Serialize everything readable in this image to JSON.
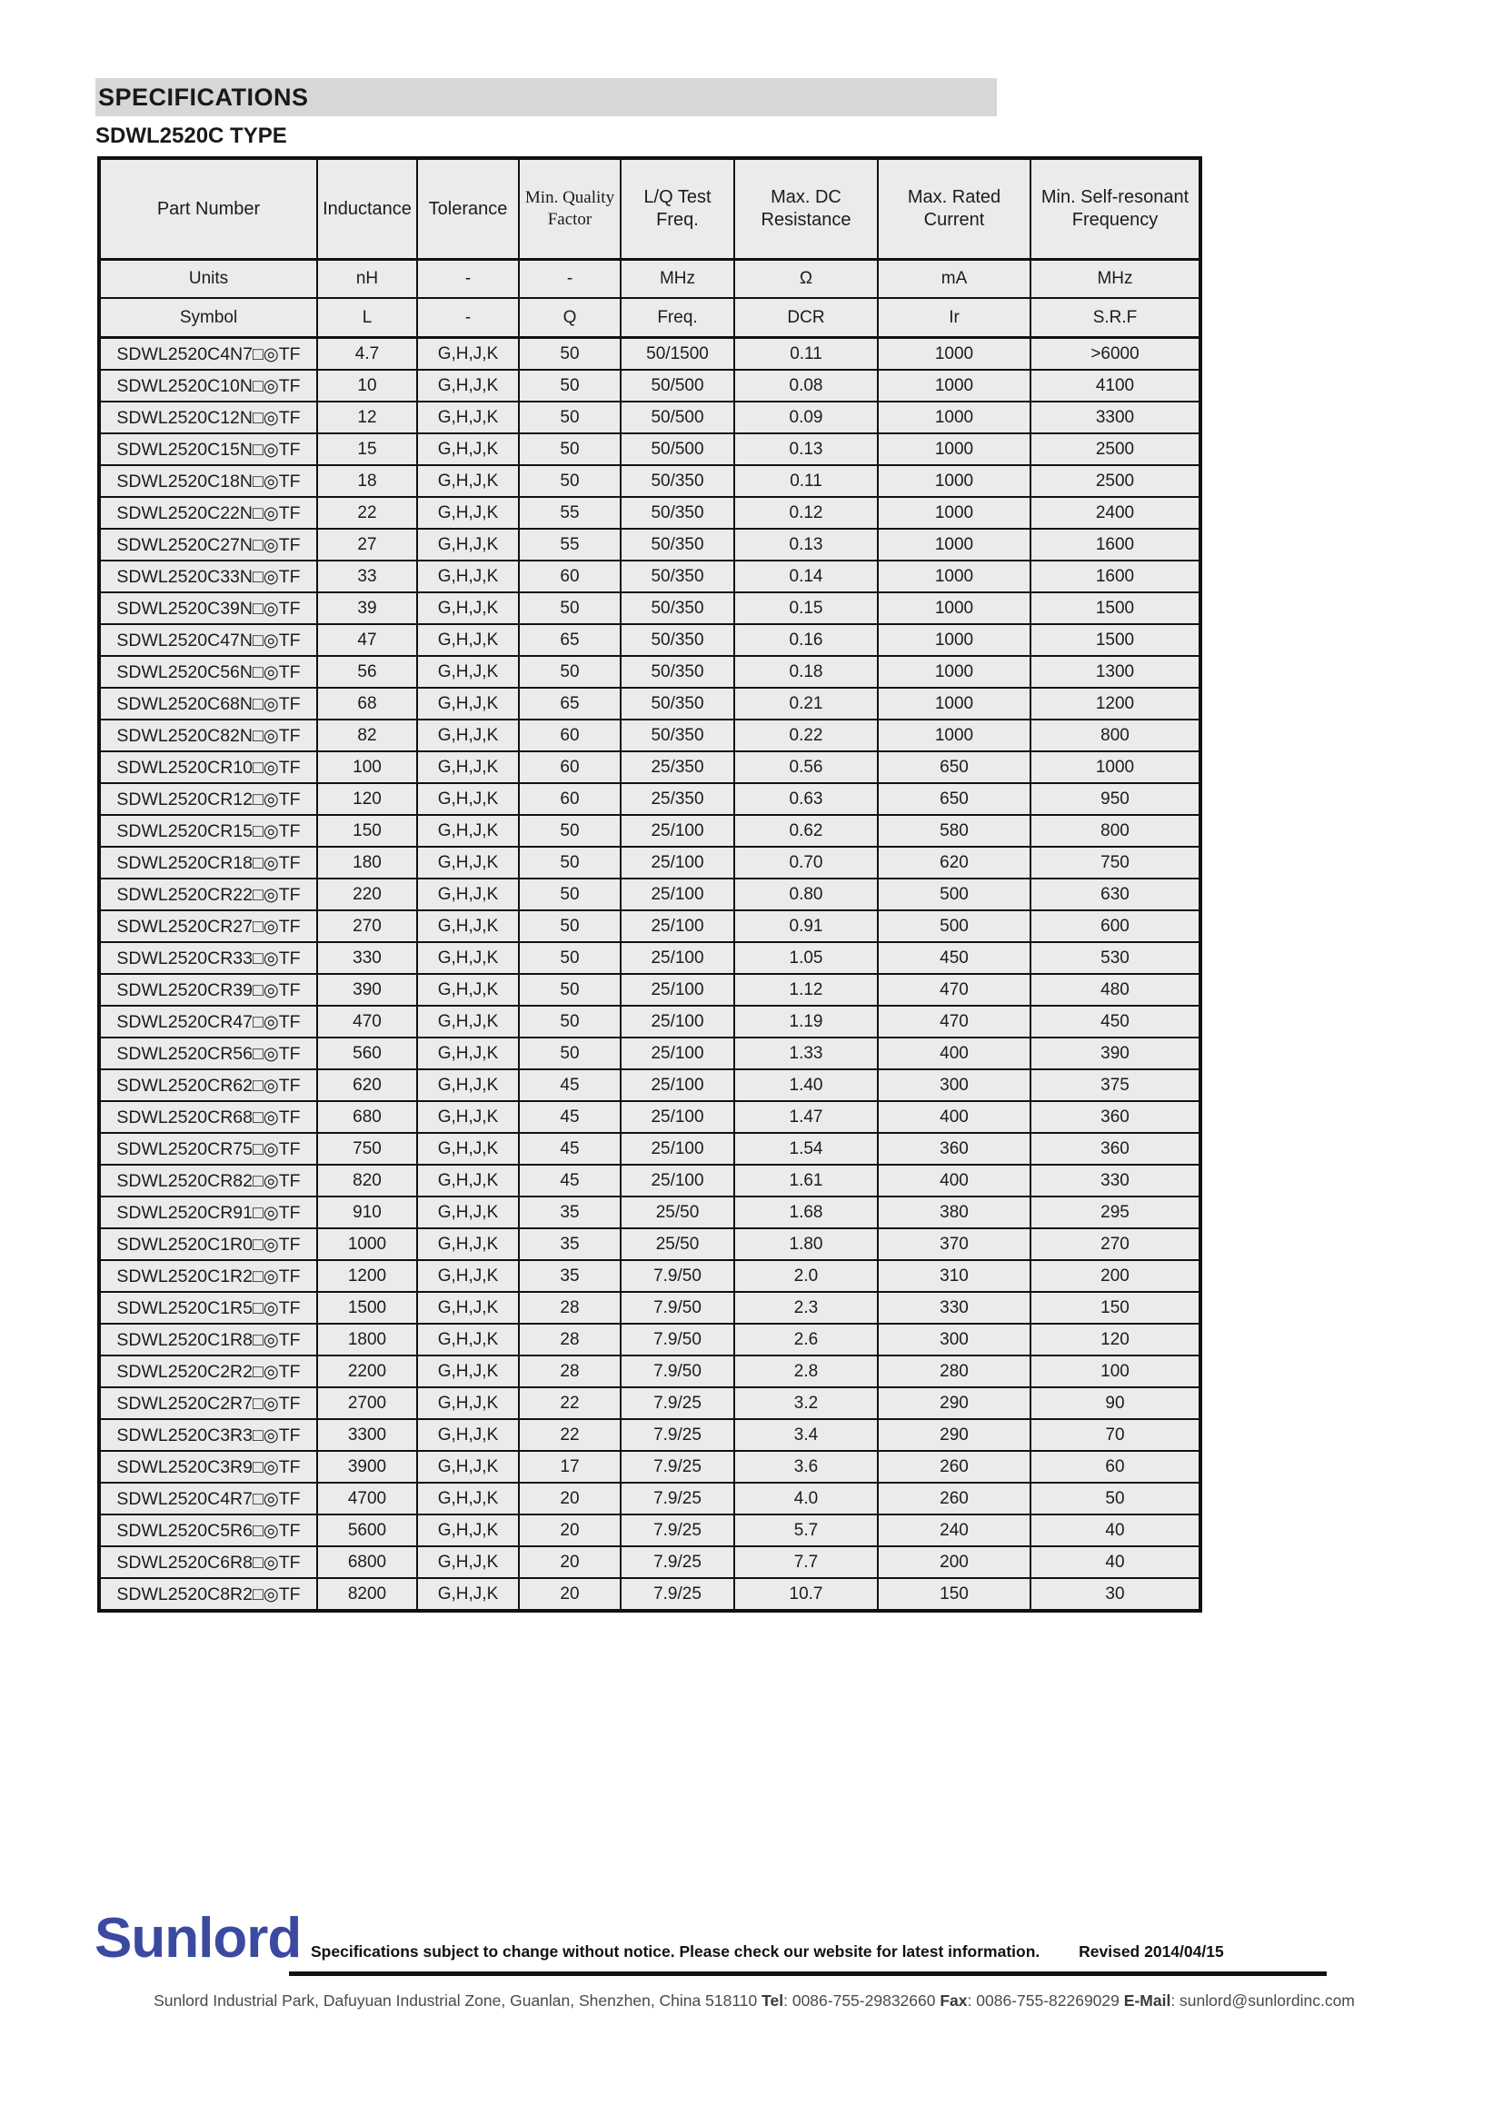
{
  "page": {
    "section_title": "SPECIFICATIONS",
    "type_title": "SDWL2520C TYPE"
  },
  "table": {
    "headers": [
      "Part Number",
      "Inductance",
      "Tolerance",
      "Min. Quality Factor",
      "L/Q Test Freq.",
      "Max. DC Resistance",
      "Max. Rated Current",
      "Min. Self-resonant Frequency"
    ],
    "units": [
      "Units",
      "nH",
      "-",
      "-",
      "MHz",
      "Ω",
      "mA",
      "MHz"
    ],
    "symbols": [
      "Symbol",
      "L",
      "-",
      "Q",
      "Freq.",
      "DCR",
      "Ir",
      "S.R.F"
    ],
    "rows": [
      [
        "SDWL2520C4N7□◎TF",
        "4.7",
        "G,H,J,K",
        "50",
        "50/1500",
        "0.11",
        "1000",
        ">6000"
      ],
      [
        "SDWL2520C10N□◎TF",
        "10",
        "G,H,J,K",
        "50",
        "50/500",
        "0.08",
        "1000",
        "4100"
      ],
      [
        "SDWL2520C12N□◎TF",
        "12",
        "G,H,J,K",
        "50",
        "50/500",
        "0.09",
        "1000",
        "3300"
      ],
      [
        "SDWL2520C15N□◎TF",
        "15",
        "G,H,J,K",
        "50",
        "50/500",
        "0.13",
        "1000",
        "2500"
      ],
      [
        "SDWL2520C18N□◎TF",
        "18",
        "G,H,J,K",
        "50",
        "50/350",
        "0.11",
        "1000",
        "2500"
      ],
      [
        "SDWL2520C22N□◎TF",
        "22",
        "G,H,J,K",
        "55",
        "50/350",
        "0.12",
        "1000",
        "2400"
      ],
      [
        "SDWL2520C27N□◎TF",
        "27",
        "G,H,J,K",
        "55",
        "50/350",
        "0.13",
        "1000",
        "1600"
      ],
      [
        "SDWL2520C33N□◎TF",
        "33",
        "G,H,J,K",
        "60",
        "50/350",
        "0.14",
        "1000",
        "1600"
      ],
      [
        "SDWL2520C39N□◎TF",
        "39",
        "G,H,J,K",
        "50",
        "50/350",
        "0.15",
        "1000",
        "1500"
      ],
      [
        "SDWL2520C47N□◎TF",
        "47",
        "G,H,J,K",
        "65",
        "50/350",
        "0.16",
        "1000",
        "1500"
      ],
      [
        "SDWL2520C56N□◎TF",
        "56",
        "G,H,J,K",
        "50",
        "50/350",
        "0.18",
        "1000",
        "1300"
      ],
      [
        "SDWL2520C68N□◎TF",
        "68",
        "G,H,J,K",
        "65",
        "50/350",
        "0.21",
        "1000",
        "1200"
      ],
      [
        "SDWL2520C82N□◎TF",
        "82",
        "G,H,J,K",
        "60",
        "50/350",
        "0.22",
        "1000",
        "800"
      ],
      [
        "SDWL2520CR10□◎TF",
        "100",
        "G,H,J,K",
        "60",
        "25/350",
        "0.56",
        "650",
        "1000"
      ],
      [
        "SDWL2520CR12□◎TF",
        "120",
        "G,H,J,K",
        "60",
        "25/350",
        "0.63",
        "650",
        "950"
      ],
      [
        "SDWL2520CR15□◎TF",
        "150",
        "G,H,J,K",
        "50",
        "25/100",
        "0.62",
        "580",
        "800"
      ],
      [
        "SDWL2520CR18□◎TF",
        "180",
        "G,H,J,K",
        "50",
        "25/100",
        "0.70",
        "620",
        "750"
      ],
      [
        "SDWL2520CR22□◎TF",
        "220",
        "G,H,J,K",
        "50",
        "25/100",
        "0.80",
        "500",
        "630"
      ],
      [
        "SDWL2520CR27□◎TF",
        "270",
        "G,H,J,K",
        "50",
        "25/100",
        "0.91",
        "500",
        "600"
      ],
      [
        "SDWL2520CR33□◎TF",
        "330",
        "G,H,J,K",
        "50",
        "25/100",
        "1.05",
        "450",
        "530"
      ],
      [
        "SDWL2520CR39□◎TF",
        "390",
        "G,H,J,K",
        "50",
        "25/100",
        "1.12",
        "470",
        "480"
      ],
      [
        "SDWL2520CR47□◎TF",
        "470",
        "G,H,J,K",
        "50",
        "25/100",
        "1.19",
        "470",
        "450"
      ],
      [
        "SDWL2520CR56□◎TF",
        "560",
        "G,H,J,K",
        "50",
        "25/100",
        "1.33",
        "400",
        "390"
      ],
      [
        "SDWL2520CR62□◎TF",
        "620",
        "G,H,J,K",
        "45",
        "25/100",
        "1.40",
        "300",
        "375"
      ],
      [
        "SDWL2520CR68□◎TF",
        "680",
        "G,H,J,K",
        "45",
        "25/100",
        "1.47",
        "400",
        "360"
      ],
      [
        "SDWL2520CR75□◎TF",
        "750",
        "G,H,J,K",
        "45",
        "25/100",
        "1.54",
        "360",
        "360"
      ],
      [
        "SDWL2520CR82□◎TF",
        "820",
        "G,H,J,K",
        "45",
        "25/100",
        "1.61",
        "400",
        "330"
      ],
      [
        "SDWL2520CR91□◎TF",
        "910",
        "G,H,J,K",
        "35",
        "25/50",
        "1.68",
        "380",
        "295"
      ],
      [
        "SDWL2520C1R0□◎TF",
        "1000",
        "G,H,J,K",
        "35",
        "25/50",
        "1.80",
        "370",
        "270"
      ],
      [
        "SDWL2520C1R2□◎TF",
        "1200",
        "G,H,J,K",
        "35",
        "7.9/50",
        "2.0",
        "310",
        "200"
      ],
      [
        "SDWL2520C1R5□◎TF",
        "1500",
        "G,H,J,K",
        "28",
        "7.9/50",
        "2.3",
        "330",
        "150"
      ],
      [
        "SDWL2520C1R8□◎TF",
        "1800",
        "G,H,J,K",
        "28",
        "7.9/50",
        "2.6",
        "300",
        "120"
      ],
      [
        "SDWL2520C2R2□◎TF",
        "2200",
        "G,H,J,K",
        "28",
        "7.9/50",
        "2.8",
        "280",
        "100"
      ],
      [
        "SDWL2520C2R7□◎TF",
        "2700",
        "G,H,J,K",
        "22",
        "7.9/25",
        "3.2",
        "290",
        "90"
      ],
      [
        "SDWL2520C3R3□◎TF",
        "3300",
        "G,H,J,K",
        "22",
        "7.9/25",
        "3.4",
        "290",
        "70"
      ],
      [
        "SDWL2520C3R9□◎TF",
        "3900",
        "G,H,J,K",
        "17",
        "7.9/25",
        "3.6",
        "260",
        "60"
      ],
      [
        "SDWL2520C4R7□◎TF",
        "4700",
        "G,H,J,K",
        "20",
        "7.9/25",
        "4.0",
        "260",
        "50"
      ],
      [
        "SDWL2520C5R6□◎TF",
        "5600",
        "G,H,J,K",
        "20",
        "7.9/25",
        "5.7",
        "240",
        "40"
      ],
      [
        "SDWL2520C6R8□◎TF",
        "6800",
        "G,H,J,K",
        "20",
        "7.9/25",
        "7.7",
        "200",
        "40"
      ],
      [
        "SDWL2520C8R2□◎TF",
        "8200",
        "G,H,J,K",
        "20",
        "7.9/25",
        "10.7",
        "150",
        "30"
      ]
    ]
  },
  "footer": {
    "logo_text": "Sunlord",
    "brand_color": "#3b4aa0",
    "notice": "Specifications subject to change without notice. Please check our website for latest information.",
    "revised": "Revised 2014/04/15",
    "address": "Sunlord Industrial Park, Dafuyuan Industrial Zone, Guanlan, Shenzhen, China 518110",
    "tel_label": "Tel",
    "tel_value": ": 0086-755-29832660",
    "fax_label": "Fax",
    "fax_value": ": 0086-755-82269029",
    "email_label": "E-Mail",
    "email_value": ": sunlord@sunlordinc.com"
  }
}
